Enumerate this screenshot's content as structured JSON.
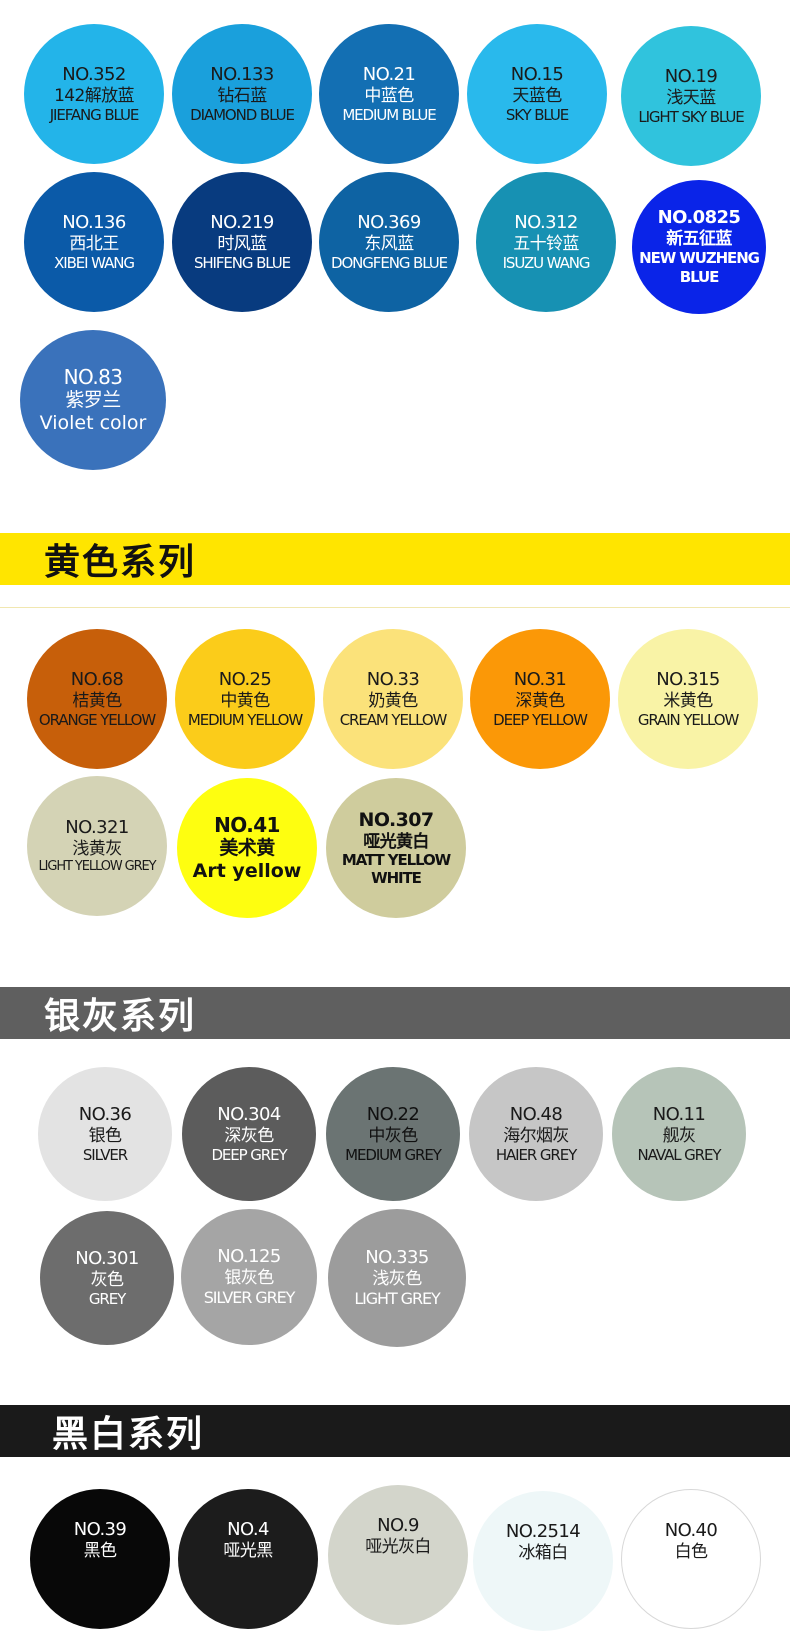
{
  "sections": [
    {
      "id": "blue",
      "banner": ""
    },
    {
      "id": "yellow",
      "banner": "黄色系列"
    },
    {
      "id": "grey",
      "banner": "银灰系列"
    },
    {
      "id": "blackwhite",
      "banner": "黑白系列"
    }
  ],
  "swatches": [
    {
      "no": "NO.352",
      "cn": "142解放蓝",
      "en": "JIEFANG BLUE",
      "color": "#23b4e9",
      "text": "#1a1a1a"
    },
    {
      "no": "NO.133",
      "cn": "钻石蓝",
      "en": "DIAMOND BLUE",
      "color": "#1aa0dc",
      "text": "#1a1a1a"
    },
    {
      "no": "NO.21",
      "cn": "中蓝色",
      "en": "MEDIUM BLUE",
      "color": "#136fb3",
      "text": "#ffffff"
    },
    {
      "no": "NO.15",
      "cn": "天蓝色",
      "en": "SKY BLUE",
      "color": "#29b9ec",
      "text": "#1a1a1a"
    },
    {
      "no": "NO.19",
      "cn": "浅天蓝",
      "en": "LIGHT SKY BLUE",
      "color": "#30c3dd",
      "text": "#1a1a1a"
    },
    {
      "no": "NO.136",
      "cn": "西北王",
      "en": "XIBEI WANG",
      "color": "#0b5aa8",
      "text": "#ffffff"
    },
    {
      "no": "NO.219",
      "cn": "时风蓝",
      "en": "SHIFENG BLUE",
      "color": "#083b7f",
      "text": "#ffffff"
    },
    {
      "no": "NO.369",
      "cn": "东风蓝",
      "en": "DONGFENG BLUE",
      "color": "#0e63a3",
      "text": "#ffffff"
    },
    {
      "no": "NO.312",
      "cn": "五十铃蓝",
      "en": "ISUZU WANG",
      "color": "#1791b3",
      "text": "#ffffff"
    },
    {
      "no": "NO.0825",
      "cn": "新五征蓝",
      "en": "NEW WUZHENG BLUE",
      "color": "#0a24e8",
      "text": "#ffffff"
    },
    {
      "no": "NO.83",
      "cn": "紫罗兰",
      "en": "Violet color",
      "color": "#3a72bb",
      "text": "#ffffff"
    },
    {
      "no": "NO.68",
      "cn": "桔黄色",
      "en": "ORANGE YELLOW",
      "color": "#c75f0a",
      "text": "#1a1a1a"
    },
    {
      "no": "NO.25",
      "cn": "中黄色",
      "en": "MEDIUM YELLOW",
      "color": "#fbcc1a",
      "text": "#1a1a1a"
    },
    {
      "no": "NO.33",
      "cn": "奶黄色",
      "en": "CREAM YELLOW",
      "color": "#fbe27a",
      "text": "#1a1a1a"
    },
    {
      "no": "NO.31",
      "cn": "深黄色",
      "en": "DEEP YELLOW",
      "color": "#fb9807",
      "text": "#1a1a1a"
    },
    {
      "no": "NO.315",
      "cn": "米黄色",
      "en": "GRAIN YELLOW",
      "color": "#f9f3a6",
      "text": "#1a1a1a"
    },
    {
      "no": "NO.321",
      "cn": "浅黄灰",
      "en": "LIGHT YELLOW GREY",
      "color": "#d4d3b5",
      "text": "#1a1a1a"
    },
    {
      "no": "NO.41",
      "cn": "美术黄",
      "en": "Art yellow",
      "color": "#fefe10",
      "text": "#111111"
    },
    {
      "no": "NO.307",
      "cn": "哑光黄白",
      "en": "MATT YELLOW WHITE",
      "color": "#cfcc9d",
      "text": "#111111"
    },
    {
      "no": "NO.36",
      "cn": "银色",
      "en": "SILVER",
      "color": "#e3e3e3",
      "text": "#1a1a1a"
    },
    {
      "no": "NO.304",
      "cn": "深灰色",
      "en": "DEEP GREY",
      "color": "#5c5c5c",
      "text": "#ffffff"
    },
    {
      "no": "NO.22",
      "cn": "中灰色",
      "en": "MEDIUM GREY",
      "color": "#6b7473",
      "text": "#111111"
    },
    {
      "no": "NO.48",
      "cn": "海尔烟灰",
      "en": "HAIER GREY",
      "color": "#c6c6c6",
      "text": "#1a1a1a"
    },
    {
      "no": "NO.11",
      "cn": "舰灰",
      "en": "NAVAL GREY",
      "color": "#b6c4b8",
      "text": "#1a1a1a"
    },
    {
      "no": "NO.301",
      "cn": "灰色",
      "en": "GREY",
      "color": "#6d6d6d",
      "text": "#ffffff"
    },
    {
      "no": "NO.125",
      "cn": "银灰色",
      "en": "SILVER GREY",
      "color": "#a5a5a5",
      "text": "#ffffff"
    },
    {
      "no": "NO.335",
      "cn": "浅灰色",
      "en": "LIGHT GREY",
      "color": "#9c9c9c",
      "text": "#ffffff"
    },
    {
      "no": "NO.39",
      "cn": "黑色",
      "en": "",
      "color": "#080808",
      "text": "#ffffff"
    },
    {
      "no": "NO.4",
      "cn": "哑光黑",
      "en": "",
      "color": "#1c1c1c",
      "text": "#ffffff"
    },
    {
      "no": "NO.9",
      "cn": "哑光灰白",
      "en": "",
      "color": "#d3d5cb",
      "text": "#1a1a1a"
    },
    {
      "no": "NO.2514",
      "cn": "冰箱白",
      "en": "",
      "color": "#eef7f8",
      "text": "#1a1a1a"
    },
    {
      "no": "NO.40",
      "cn": "白色",
      "en": "",
      "color": "#ffffff",
      "text": "#1a1a1a"
    }
  ]
}
